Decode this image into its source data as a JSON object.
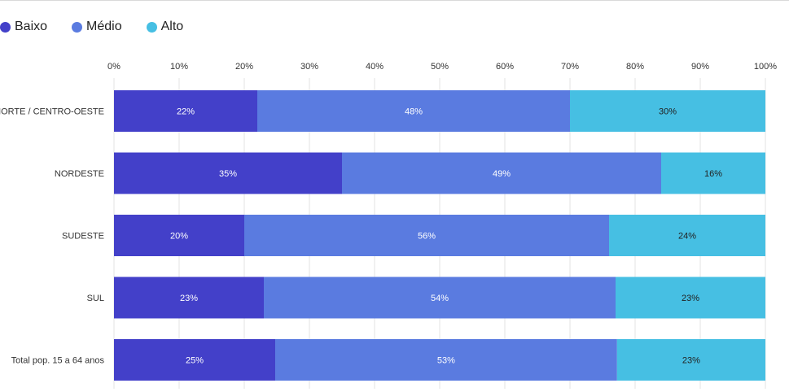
{
  "chart_data": {
    "type": "bar",
    "orientation": "horizontal",
    "stacked": true,
    "normalized": true,
    "categories": [
      "NORTE / CENTRO-OESTE",
      "NORDESTE",
      "SUDESTE",
      "SUL",
      "Total pop. 15 a 64 anos"
    ],
    "series": [
      {
        "name": "Baixo",
        "color": "#4340c9",
        "label_color": "#ffffff",
        "values": [
          22,
          35,
          20,
          23,
          25
        ],
        "labels": [
          "22%",
          "35%",
          "20%",
          "23%",
          "25%"
        ]
      },
      {
        "name": "Médio",
        "color": "#5a7be0",
        "label_color": "#ffffff",
        "values": [
          48,
          49,
          56,
          54,
          53
        ],
        "labels": [
          "48%",
          "49%",
          "56%",
          "54%",
          "53%"
        ]
      },
      {
        "name": "Alto",
        "color": "#46bfe3",
        "label_color": "#222222",
        "values": [
          30,
          16,
          24,
          23,
          23
        ],
        "labels": [
          "30%",
          "16%",
          "24%",
          "23%",
          "23%"
        ]
      }
    ],
    "x_ticks": [
      "0%",
      "10%",
      "20%",
      "30%",
      "40%",
      "50%",
      "60%",
      "70%",
      "80%",
      "90%",
      "100%"
    ],
    "xlim": [
      0,
      100
    ],
    "grid": "vertical",
    "legend_position": "top-left",
    "title": "",
    "xlabel": "",
    "ylabel": ""
  }
}
